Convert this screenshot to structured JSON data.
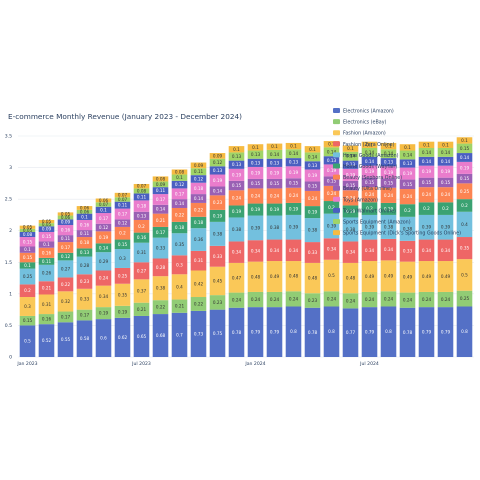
{
  "chart_data": {
    "type": "bar",
    "stacked": true,
    "title": "E-commerce Monthly Revenue (January 2023 - December 2024)",
    "xlabel": "",
    "ylabel": "",
    "ylim": [
      0,
      3.5
    ],
    "yticks": [
      0,
      0.5,
      1,
      1.5,
      2,
      2.5,
      3,
      3.5
    ],
    "ytick_labels": [
      "0",
      "0.5",
      "1",
      "1.5",
      "2",
      "2.5",
      "3",
      "3.5"
    ],
    "xtick_labels": [
      {
        "index": 0,
        "label": "Jan 2023"
      },
      {
        "index": 6,
        "label": "Jul 2023"
      },
      {
        "index": 12,
        "label": "Jan 2024"
      },
      {
        "index": 18,
        "label": "Jul 2024"
      }
    ],
    "grid": true,
    "legend_position": "top-right",
    "categories": [
      "2023-01",
      "2023-02",
      "2023-03",
      "2023-04",
      "2023-05",
      "2023-06",
      "2023-07",
      "2023-08",
      "2023-09",
      "2023-10",
      "2023-11",
      "2023-12",
      "2024-01",
      "2024-02",
      "2024-03",
      "2024-04",
      "2024-05",
      "2024-06",
      "2024-07",
      "2024-08",
      "2024-09",
      "2024-10",
      "2024-11",
      "2024-12"
    ],
    "series": [
      {
        "name": "Electronics (Amazon)",
        "color": "#5470c6",
        "values": [
          0.5,
          0.52,
          0.55,
          0.58,
          0.6,
          0.62,
          0.65,
          0.68,
          0.7,
          0.73,
          0.75,
          0.78,
          0.79,
          0.79,
          0.8,
          0.78,
          0.8,
          0.77,
          0.79,
          0.8,
          0.78,
          0.79,
          0.79,
          0.8
        ]
      },
      {
        "name": "Electronics (eBay)",
        "color": "#91cc75",
        "values": [
          0.15,
          0.16,
          0.17,
          0.17,
          0.19,
          0.19,
          0.21,
          0.22,
          0.21,
          0.22,
          0.23,
          0.24,
          0.24,
          0.24,
          0.24,
          0.23,
          0.24,
          0.24,
          0.24,
          0.24,
          0.24,
          0.24,
          0.24,
          0.25
        ]
      },
      {
        "name": "Fashion (Amazon)",
        "color": "#fac858",
        "values": [
          0.3,
          0.31,
          0.32,
          0.33,
          0.34,
          0.35,
          0.37,
          0.38,
          0.4,
          0.42,
          0.45,
          0.47,
          0.48,
          0.49,
          0.48,
          0.48,
          0.5,
          0.48,
          0.49,
          0.49,
          0.49,
          0.49,
          0.49,
          0.5
        ]
      },
      {
        "name": "Fashion (Zara Online)",
        "color": "#ee6666",
        "values": [
          0.2,
          0.21,
          0.22,
          0.23,
          0.24,
          0.25,
          0.27,
          0.28,
          0.3,
          0.31,
          0.33,
          0.34,
          0.34,
          0.34,
          0.34,
          0.33,
          0.34,
          0.34,
          0.34,
          0.34,
          0.33,
          0.34,
          0.34,
          0.35
        ]
      },
      {
        "name": "Home Goods (Amazon)",
        "color": "#73c0de",
        "values": [
          0.25,
          0.26,
          0.27,
          0.28,
          0.29,
          0.3,
          0.31,
          0.33,
          0.35,
          0.36,
          0.38,
          0.38,
          0.39,
          0.38,
          0.39,
          0.38,
          0.39,
          0.38,
          0.39,
          0.38,
          0.38,
          0.39,
          0.39,
          0.4
        ]
      },
      {
        "name": "Home Goods (Wayfair)",
        "color": "#3ba272",
        "values": [
          0.1,
          0.11,
          0.12,
          0.13,
          0.14,
          0.15,
          0.16,
          0.17,
          0.18,
          0.18,
          0.19,
          0.19,
          0.19,
          0.19,
          0.19,
          0.19,
          0.2,
          0.19,
          0.2,
          0.19,
          0.2,
          0.2,
          0.2,
          0.2
        ]
      },
      {
        "name": "Beauty (Sephora Online)",
        "color": "#fc8452",
        "values": [
          0.15,
          0.16,
          0.17,
          0.18,
          0.19,
          0.2,
          0.2,
          0.21,
          0.22,
          0.22,
          0.23,
          0.24,
          0.24,
          0.24,
          0.24,
          0.24,
          0.24,
          0.24,
          0.24,
          0.24,
          0.24,
          0.24,
          0.24,
          0.25
        ]
      },
      {
        "name": "Beauty (Ulta Online)",
        "color": "#9a60b4",
        "values": [
          0.1,
          0.1,
          0.11,
          0.11,
          0.12,
          0.12,
          0.13,
          0.14,
          0.14,
          0.14,
          0.14,
          0.15,
          0.15,
          0.15,
          0.15,
          0.15,
          0.15,
          0.15,
          0.15,
          0.15,
          0.15,
          0.15,
          0.15,
          0.15
        ]
      },
      {
        "name": "Toys (Amazon)",
        "color": "#ea7ccc",
        "values": [
          0.15,
          0.15,
          0.16,
          0.16,
          0.17,
          0.17,
          0.18,
          0.17,
          0.17,
          0.18,
          0.19,
          0.19,
          0.19,
          0.19,
          0.19,
          0.19,
          0.19,
          0.19,
          0.19,
          0.19,
          0.19,
          0.19,
          0.19,
          0.19
        ]
      },
      {
        "name": "Toys (Walmart Online)",
        "color": "#4a5fc1",
        "values": [
          0.08,
          0.09,
          0.09,
          0.1,
          0.1,
          0.11,
          0.11,
          0.11,
          0.12,
          0.12,
          0.13,
          0.13,
          0.13,
          0.13,
          0.13,
          0.13,
          0.13,
          0.13,
          0.14,
          0.13,
          0.13,
          0.14,
          0.14,
          0.14
        ]
      },
      {
        "name": "Sports Equipment (Amazon)",
        "color": "#a0d468",
        "values": [
          0.05,
          0.05,
          0.06,
          0.06,
          0.07,
          0.07,
          0.08,
          0.09,
          0.1,
          0.11,
          0.12,
          0.13,
          0.13,
          0.14,
          0.14,
          0.14,
          0.14,
          0.14,
          0.14,
          0.14,
          0.14,
          0.14,
          0.14,
          0.15
        ]
      },
      {
        "name": "Sports Equipment (Dick's Sporting Goods Online)",
        "color": "#f6bb42",
        "values": [
          0.05,
          0.05,
          0.05,
          0.06,
          0.06,
          0.07,
          0.07,
          0.08,
          0.08,
          0.09,
          0.09,
          0.1,
          0.1,
          0.1,
          0.1,
          0.1,
          0.1,
          0.1,
          0.1,
          0.1,
          0.1,
          0.1,
          0.1,
          0.1
        ]
      }
    ]
  }
}
